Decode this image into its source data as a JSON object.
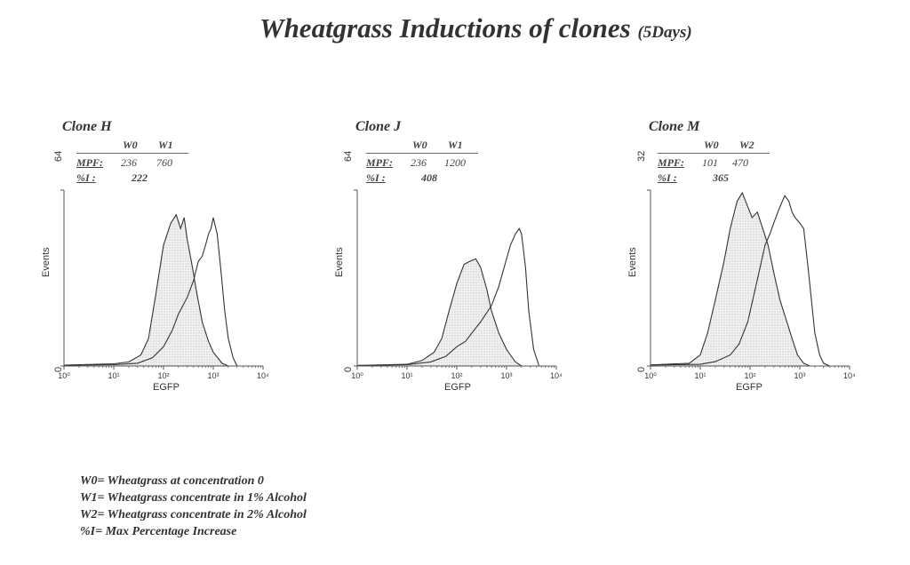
{
  "title": {
    "main": "Wheatgrass Inductions of clones",
    "sub": "(5Days)"
  },
  "chart_data": [
    {
      "type": "area",
      "title": "Clone H",
      "xlabel": "EGFP",
      "ylabel": "Events",
      "xscale": "log",
      "xlim": [
        1,
        10000
      ],
      "ylim": [
        0,
        64
      ],
      "x_tick_labels": [
        "10⁰",
        "10¹",
        "10²",
        "10³",
        "10⁴"
      ],
      "y_tick_labels": [
        "0",
        "64"
      ],
      "stats": {
        "columns": [
          "W0",
          "W1"
        ],
        "MPF_label": "MPF:",
        "MPF": [
          "236",
          "760"
        ],
        "I_label": "%I  :",
        "I": "222"
      },
      "series": [
        {
          "name": "W0",
          "style": "filled",
          "x": [
            1,
            10,
            20,
            35,
            50,
            70,
            100,
            140,
            180,
            220,
            260,
            300,
            380,
            450,
            600,
            800,
            1000,
            1500,
            2000
          ],
          "y": [
            0.3,
            0.8,
            1.5,
            4,
            10,
            26,
            44,
            52,
            55,
            50,
            54,
            46,
            36,
            28,
            16,
            9,
            5,
            1,
            0
          ]
        },
        {
          "name": "W1",
          "style": "outline",
          "x": [
            1,
            10,
            30,
            60,
            100,
            150,
            200,
            300,
            400,
            500,
            600,
            700,
            800,
            900,
            1000,
            1200,
            1400,
            1700,
            2000,
            2500,
            3000
          ],
          "y": [
            0.3,
            0.5,
            1,
            3,
            7,
            13,
            19,
            25,
            31,
            38,
            40,
            44,
            48,
            50,
            54,
            48,
            36,
            20,
            10,
            3,
            0
          ]
        }
      ]
    },
    {
      "type": "area",
      "title": "Clone J",
      "xlabel": "EGFP",
      "ylabel": "Events",
      "xscale": "log",
      "xlim": [
        1,
        10000
      ],
      "ylim": [
        0,
        64
      ],
      "x_tick_labels": [
        "10⁰",
        "10¹",
        "10²",
        "10³",
        "10⁴"
      ],
      "y_tick_labels": [
        "0",
        "64"
      ],
      "stats": {
        "columns": [
          "W0",
          "W1"
        ],
        "MPF_label": "MPF:",
        "MPF": [
          "236",
          "1200"
        ],
        "I_label": "%I  :",
        "I": "408"
      },
      "series": [
        {
          "name": "W0",
          "style": "filled",
          "x": [
            1,
            10,
            20,
            35,
            50,
            70,
            100,
            140,
            180,
            240,
            300,
            400,
            500,
            700,
            1000,
            1500,
            2000
          ],
          "y": [
            0.2,
            0.6,
            2,
            5,
            10,
            20,
            30,
            37,
            38,
            39,
            36,
            28,
            20,
            12,
            6,
            1.5,
            0
          ]
        },
        {
          "name": "W1",
          "style": "outline",
          "x": [
            1,
            10,
            30,
            60,
            100,
            150,
            200,
            300,
            500,
            700,
            900,
            1200,
            1500,
            1800,
            2000,
            2400,
            2800,
            3500,
            4500
          ],
          "y": [
            0.2,
            0.5,
            1.5,
            3.5,
            7,
            9,
            12,
            16,
            22,
            29,
            36,
            44,
            48,
            50,
            48,
            36,
            20,
            6,
            0
          ]
        }
      ]
    },
    {
      "type": "area",
      "title": "Clone M",
      "xlabel": "EGFP",
      "ylabel": "Events",
      "xscale": "log",
      "xlim": [
        1,
        10000
      ],
      "ylim": [
        0,
        32
      ],
      "x_tick_labels": [
        "10⁰",
        "10¹",
        "10²",
        "10³",
        "10⁴"
      ],
      "y_tick_labels": [
        "0",
        "32"
      ],
      "stats": {
        "columns": [
          "W0",
          "W2"
        ],
        "MPF_label": "MPF:",
        "MPF": [
          "101",
          "470"
        ],
        "I_label": "%I  :",
        "I": "365"
      },
      "series": [
        {
          "name": "W0",
          "style": "filled",
          "x": [
            1,
            6,
            10,
            14,
            20,
            30,
            40,
            55,
            70,
            90,
            110,
            140,
            180,
            230,
            300,
            400,
            550,
            700,
            900,
            1200,
            1600
          ],
          "y": [
            0.2,
            0.5,
            2,
            6,
            12,
            19,
            25,
            30,
            31.5,
            29,
            27,
            28,
            25,
            22,
            17,
            12,
            8,
            5,
            2,
            0.5,
            0
          ]
        },
        {
          "name": "W2",
          "style": "outline",
          "x": [
            1,
            10,
            20,
            40,
            60,
            90,
            120,
            160,
            200,
            250,
            300,
            400,
            500,
            600,
            700,
            800,
            1000,
            1200,
            1500,
            2000,
            2500,
            3000,
            4000
          ],
          "y": [
            0.2,
            0.3,
            0.8,
            2,
            4,
            8,
            13,
            18,
            22,
            24,
            26,
            29,
            31,
            30,
            28,
            27,
            26,
            25,
            17,
            6,
            2,
            0.5,
            0
          ]
        }
      ]
    }
  ],
  "legend": [
    "W0= Wheatgrass at concentration 0",
    "W1= Wheatgrass concentrate in 1% Alcohol",
    "W2= Wheatgrass concentrate in 2% Alcohol",
    "%I= Max Percentage Increase"
  ]
}
